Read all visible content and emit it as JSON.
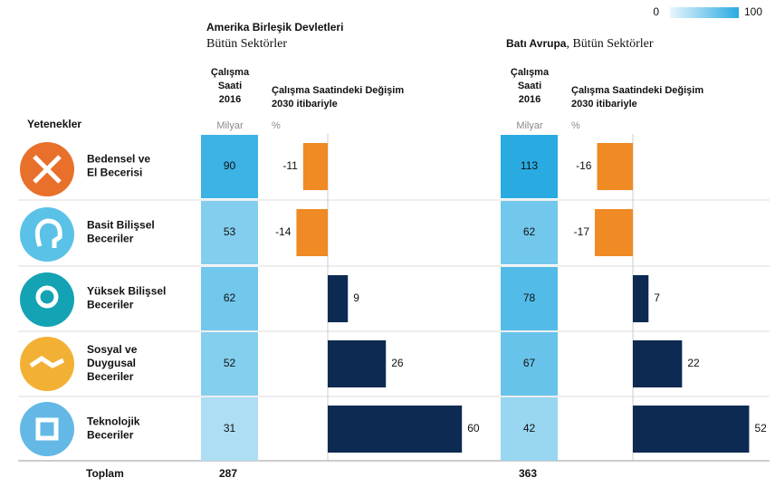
{
  "chart_data": {
    "type": "bar",
    "row_header": "Yetenekler",
    "total_label": "Toplam",
    "legend": {
      "min": 0,
      "max": 100,
      "colors": [
        "#e8f5fc",
        "#29abe2"
      ]
    },
    "categories": [
      "Bedensel ve\nEl Becerisi",
      "Basit Bilişsel\nBeceriler",
      "Yüksek Bilişsel\nBeceriler",
      "Sosyal ve\nDuygusal\nBeceriler",
      "Teknolojik\nBeceriler"
    ],
    "xlim": [
      -15,
      60
    ],
    "negative_color": "#f08a24",
    "positive_color": "#0d2a52",
    "groups": [
      {
        "region": "Amerika Birleşik Devletleri",
        "sector": "Bütün Sektörler",
        "hours_label": "Çalışma\nSaati\n2016",
        "hours_unit": "Milyar",
        "change_label": "Çalışma Saatindeki Değişim\n2030 itibariyle",
        "change_unit": "%",
        "hours": [
          90,
          53,
          62,
          52,
          31
        ],
        "change": [
          -11,
          -14,
          9,
          26,
          60
        ],
        "total": 287
      },
      {
        "region": "Batı Avrupa",
        "sector": ", Bütün Sektörler",
        "hours_label": "Çalışma\nSaati\n2016",
        "hours_unit": "Milyar",
        "change_label": "Çalışma Saatindeki Değişim\n2030 itibariyle",
        "change_unit": "%",
        "hours": [
          113,
          62,
          78,
          67,
          42
        ],
        "change": [
          -16,
          -17,
          7,
          22,
          52
        ],
        "total": 363
      }
    ]
  }
}
